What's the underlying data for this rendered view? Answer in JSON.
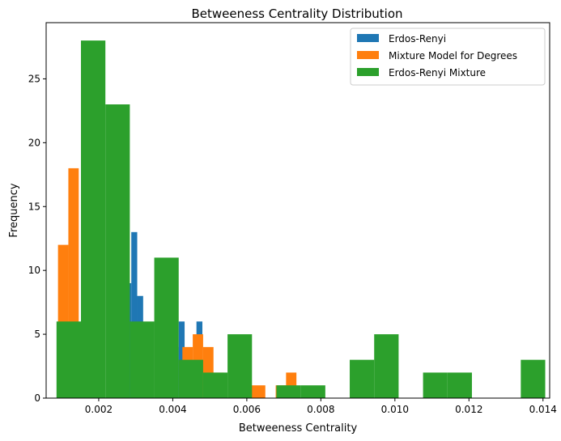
{
  "chart_data": {
    "type": "histogram",
    "title": "Betweeness Centrality Distribution",
    "xlabel": "Betweeness Centrality",
    "ylabel": "Frequency",
    "xlim": [
      0.00058,
      0.01418
    ],
    "ylim": [
      0,
      29.4
    ],
    "xticks": [
      0.002,
      0.004,
      0.006,
      0.008,
      0.01,
      0.012,
      0.014
    ],
    "xtick_labels": [
      "0.002",
      "0.004",
      "0.006",
      "0.008",
      "0.010",
      "0.012",
      "0.014"
    ],
    "yticks": [
      0,
      5,
      10,
      15,
      20,
      25
    ],
    "ytick_labels": [
      "0",
      "5",
      "10",
      "15",
      "20",
      "25"
    ],
    "grid": false,
    "legend_position": "top-right",
    "series": [
      {
        "name": "Erdos-Renyi",
        "color": "#1f77b4",
        "bins": [
          {
            "x0": 0.0024,
            "x1": 0.00272,
            "count": 5
          },
          {
            "x0": 0.00272,
            "x1": 0.00288,
            "count": 9
          },
          {
            "x0": 0.00288,
            "x1": 0.00304,
            "count": 13
          },
          {
            "x0": 0.00304,
            "x1": 0.0032,
            "count": 8
          },
          {
            "x0": 0.004,
            "x1": 0.00416,
            "count": 4
          },
          {
            "x0": 0.00416,
            "x1": 0.00432,
            "count": 6
          },
          {
            "x0": 0.00464,
            "x1": 0.0048,
            "count": 6
          }
        ]
      },
      {
        "name": "Mixture Model for Degrees",
        "color": "#ff7f0e",
        "bins": [
          {
            "x0": 0.0009,
            "x1": 0.00118,
            "count": 12
          },
          {
            "x0": 0.00118,
            "x1": 0.00146,
            "count": 18
          },
          {
            "x0": 0.00426,
            "x1": 0.00454,
            "count": 4
          },
          {
            "x0": 0.00454,
            "x1": 0.00482,
            "count": 5
          },
          {
            "x0": 0.00482,
            "x1": 0.0051,
            "count": 4
          },
          {
            "x0": 0.0051,
            "x1": 0.00538,
            "count": 2
          },
          {
            "x0": 0.00594,
            "x1": 0.0065,
            "count": 1
          },
          {
            "x0": 0.00678,
            "x1": 0.00706,
            "count": 1
          },
          {
            "x0": 0.00706,
            "x1": 0.00734,
            "count": 2
          }
        ]
      },
      {
        "name": "Erdos-Renyi Mixture",
        "color": "#2ca02c",
        "bins": [
          {
            "x0": 0.00086,
            "x1": 0.00152,
            "count": 6
          },
          {
            "x0": 0.00152,
            "x1": 0.00218,
            "count": 28
          },
          {
            "x0": 0.00218,
            "x1": 0.00284,
            "count": 23
          },
          {
            "x0": 0.00284,
            "x1": 0.0035,
            "count": 6
          },
          {
            "x0": 0.0035,
            "x1": 0.00416,
            "count": 11
          },
          {
            "x0": 0.00416,
            "x1": 0.00482,
            "count": 3
          },
          {
            "x0": 0.00482,
            "x1": 0.00548,
            "count": 2
          },
          {
            "x0": 0.00548,
            "x1": 0.00614,
            "count": 5
          },
          {
            "x0": 0.00614,
            "x1": 0.0068,
            "count": 0
          },
          {
            "x0": 0.0068,
            "x1": 0.00746,
            "count": 1
          },
          {
            "x0": 0.00746,
            "x1": 0.00812,
            "count": 1
          },
          {
            "x0": 0.00812,
            "x1": 0.00878,
            "count": 0
          },
          {
            "x0": 0.00878,
            "x1": 0.00944,
            "count": 3
          },
          {
            "x0": 0.00944,
            "x1": 0.0101,
            "count": 5
          },
          {
            "x0": 0.0101,
            "x1": 0.01076,
            "count": 0
          },
          {
            "x0": 0.01076,
            "x1": 0.01142,
            "count": 2
          },
          {
            "x0": 0.01142,
            "x1": 0.01208,
            "count": 2
          },
          {
            "x0": 0.01208,
            "x1": 0.01274,
            "count": 0
          },
          {
            "x0": 0.01274,
            "x1": 0.0134,
            "count": 0
          },
          {
            "x0": 0.0134,
            "x1": 0.01406,
            "count": 3
          }
        ]
      }
    ]
  }
}
